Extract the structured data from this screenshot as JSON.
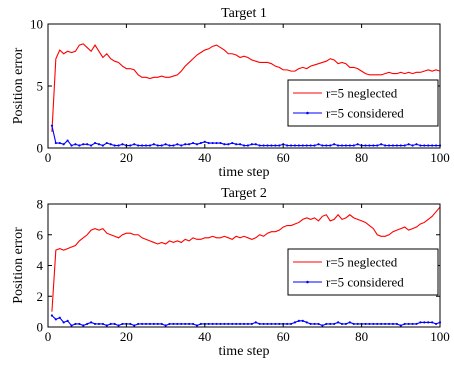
{
  "chart_data": [
    {
      "type": "line",
      "title": "Target 1",
      "xlabel": "time step",
      "ylabel": "Position error",
      "xlim": [
        0,
        100
      ],
      "ylim": [
        0,
        10
      ],
      "xticks": [
        0,
        20,
        40,
        60,
        80,
        100
      ],
      "yticks": [
        0,
        5,
        10
      ],
      "grid": false,
      "legend_position": "center-right",
      "series": [
        {
          "name": "r=5 neglected",
          "color": "#ff0000",
          "marker": "none",
          "x": [
            1,
            2,
            3,
            4,
            5,
            6,
            7,
            8,
            9,
            10,
            11,
            12,
            13,
            14,
            15,
            16,
            17,
            18,
            19,
            20,
            21,
            22,
            23,
            24,
            25,
            26,
            27,
            28,
            29,
            30,
            31,
            32,
            33,
            34,
            35,
            36,
            37,
            38,
            39,
            40,
            41,
            42,
            43,
            44,
            45,
            46,
            47,
            48,
            49,
            50,
            51,
            52,
            53,
            54,
            55,
            56,
            57,
            58,
            59,
            60,
            61,
            62,
            63,
            64,
            65,
            66,
            67,
            68,
            69,
            70,
            71,
            72,
            73,
            74,
            75,
            76,
            77,
            78,
            79,
            80,
            81,
            82,
            83,
            84,
            85,
            86,
            87,
            88,
            89,
            90,
            91,
            92,
            93,
            94,
            95,
            96,
            97,
            98,
            99,
            100
          ],
          "y": [
            1.3,
            7.2,
            7.9,
            7.6,
            7.8,
            7.7,
            7.8,
            8.3,
            8.4,
            8.1,
            7.8,
            8.3,
            7.8,
            7.3,
            7.6,
            7.2,
            7.0,
            6.9,
            6.6,
            6.4,
            6.4,
            6.3,
            5.9,
            5.7,
            5.7,
            5.6,
            5.7,
            5.7,
            5.8,
            5.7,
            5.7,
            5.8,
            5.9,
            6.2,
            6.6,
            6.9,
            7.2,
            7.5,
            7.7,
            7.9,
            8.0,
            8.2,
            8.3,
            8.1,
            7.9,
            7.6,
            7.6,
            7.5,
            7.3,
            7.4,
            7.3,
            7.1,
            7.0,
            6.9,
            6.9,
            6.9,
            6.8,
            6.6,
            6.5,
            6.3,
            6.3,
            6.2,
            6.2,
            6.4,
            6.5,
            6.4,
            6.6,
            6.7,
            6.8,
            6.9,
            7.0,
            7.2,
            7.1,
            6.8,
            6.9,
            6.8,
            6.5,
            6.5,
            6.4,
            6.2,
            6.0,
            5.9,
            5.9,
            5.9,
            5.9,
            6.0,
            6.1,
            6.0,
            6.0,
            6.1,
            6.0,
            6.1,
            6.0,
            6.1,
            6.1,
            6.2,
            6.3,
            6.2,
            6.3,
            6.2
          ]
        },
        {
          "name": "r=5 considered",
          "color": "#0000ff",
          "marker": "dot",
          "x": [
            1,
            2,
            3,
            4,
            5,
            6,
            7,
            8,
            9,
            10,
            11,
            12,
            13,
            14,
            15,
            16,
            17,
            18,
            19,
            20,
            21,
            22,
            23,
            24,
            25,
            26,
            27,
            28,
            29,
            30,
            31,
            32,
            33,
            34,
            35,
            36,
            37,
            38,
            39,
            40,
            41,
            42,
            43,
            44,
            45,
            46,
            47,
            48,
            49,
            50,
            51,
            52,
            53,
            54,
            55,
            56,
            57,
            58,
            59,
            60,
            61,
            62,
            63,
            64,
            65,
            66,
            67,
            68,
            69,
            70,
            71,
            72,
            73,
            74,
            75,
            76,
            77,
            78,
            79,
            80,
            81,
            82,
            83,
            84,
            85,
            86,
            87,
            88,
            89,
            90,
            91,
            92,
            93,
            94,
            95,
            96,
            97,
            98,
            99,
            100
          ],
          "y": [
            1.8,
            0.4,
            0.4,
            0.3,
            0.6,
            0.2,
            0.3,
            0.2,
            0.3,
            0.3,
            0.2,
            0.4,
            0.3,
            0.2,
            0.4,
            0.3,
            0.2,
            0.2,
            0.3,
            0.2,
            0.2,
            0.3,
            0.2,
            0.2,
            0.2,
            0.2,
            0.3,
            0.2,
            0.2,
            0.3,
            0.2,
            0.2,
            0.3,
            0.2,
            0.3,
            0.3,
            0.4,
            0.3,
            0.4,
            0.5,
            0.4,
            0.4,
            0.4,
            0.4,
            0.3,
            0.3,
            0.4,
            0.3,
            0.3,
            0.2,
            0.2,
            0.3,
            0.3,
            0.2,
            0.2,
            0.2,
            0.2,
            0.2,
            0.2,
            0.3,
            0.2,
            0.2,
            0.2,
            0.2,
            0.2,
            0.2,
            0.2,
            0.2,
            0.3,
            0.2,
            0.2,
            0.2,
            0.3,
            0.2,
            0.2,
            0.2,
            0.2,
            0.2,
            0.3,
            0.2,
            0.2,
            0.2,
            0.2,
            0.2,
            0.3,
            0.2,
            0.2,
            0.2,
            0.2,
            0.2,
            0.2,
            0.3,
            0.2,
            0.3,
            0.2,
            0.2,
            0.2,
            0.2,
            0.2,
            0.2
          ]
        }
      ]
    },
    {
      "type": "line",
      "title": "Target 2",
      "xlabel": "time step",
      "ylabel": "Position error",
      "xlim": [
        0,
        100
      ],
      "ylim": [
        0,
        8
      ],
      "xticks": [
        0,
        20,
        40,
        60,
        80,
        100
      ],
      "yticks": [
        0,
        2,
        4,
        6,
        8
      ],
      "grid": false,
      "legend_position": "center-right",
      "series": [
        {
          "name": "r=5 neglected",
          "color": "#ff0000",
          "marker": "none",
          "x": [
            1,
            2,
            3,
            4,
            5,
            6,
            7,
            8,
            9,
            10,
            11,
            12,
            13,
            14,
            15,
            16,
            17,
            18,
            19,
            20,
            21,
            22,
            23,
            24,
            25,
            26,
            27,
            28,
            29,
            30,
            31,
            32,
            33,
            34,
            35,
            36,
            37,
            38,
            39,
            40,
            41,
            42,
            43,
            44,
            45,
            46,
            47,
            48,
            49,
            50,
            51,
            52,
            53,
            54,
            55,
            56,
            57,
            58,
            59,
            60,
            61,
            62,
            63,
            64,
            65,
            66,
            67,
            68,
            69,
            70,
            71,
            72,
            73,
            74,
            75,
            76,
            77,
            78,
            79,
            80,
            81,
            82,
            83,
            84,
            85,
            86,
            87,
            88,
            89,
            90,
            91,
            92,
            93,
            94,
            95,
            96,
            97,
            98,
            99,
            100
          ],
          "y": [
            1.0,
            5.0,
            5.1,
            5.0,
            5.1,
            5.2,
            5.3,
            5.6,
            5.8,
            6.0,
            6.3,
            6.4,
            6.3,
            6.4,
            6.1,
            6.0,
            5.9,
            5.8,
            6.0,
            6.1,
            6.1,
            6.0,
            6.0,
            5.8,
            5.7,
            5.6,
            5.5,
            5.4,
            5.5,
            5.4,
            5.6,
            5.5,
            5.6,
            5.5,
            5.7,
            5.6,
            5.8,
            5.7,
            5.7,
            5.8,
            5.8,
            5.9,
            5.8,
            5.8,
            5.9,
            5.8,
            5.7,
            5.9,
            5.8,
            5.9,
            5.8,
            5.7,
            5.8,
            6.0,
            5.9,
            6.1,
            6.2,
            6.2,
            6.3,
            6.5,
            6.6,
            6.6,
            6.7,
            6.8,
            7.0,
            7.1,
            7.0,
            7.1,
            6.9,
            7.2,
            7.3,
            6.9,
            7.0,
            7.3,
            7.0,
            7.1,
            7.3,
            7.1,
            7.0,
            6.9,
            6.8,
            6.6,
            6.4,
            6.0,
            5.9,
            5.9,
            6.0,
            6.2,
            6.3,
            6.4,
            6.5,
            6.3,
            6.4,
            6.5,
            6.7,
            6.8,
            7.0,
            7.2,
            7.5,
            7.8
          ]
        },
        {
          "name": "r=5 considered",
          "color": "#0000ff",
          "marker": "dot",
          "x": [
            1,
            2,
            3,
            4,
            5,
            6,
            7,
            8,
            9,
            10,
            11,
            12,
            13,
            14,
            15,
            16,
            17,
            18,
            19,
            20,
            21,
            22,
            23,
            24,
            25,
            26,
            27,
            28,
            29,
            30,
            31,
            32,
            33,
            34,
            35,
            36,
            37,
            38,
            39,
            40,
            41,
            42,
            43,
            44,
            45,
            46,
            47,
            48,
            49,
            50,
            51,
            52,
            53,
            54,
            55,
            56,
            57,
            58,
            59,
            60,
            61,
            62,
            63,
            64,
            65,
            66,
            67,
            68,
            69,
            70,
            71,
            72,
            73,
            74,
            75,
            76,
            77,
            78,
            79,
            80,
            81,
            82,
            83,
            84,
            85,
            86,
            87,
            88,
            89,
            90,
            91,
            92,
            93,
            94,
            95,
            96,
            97,
            98,
            99,
            100
          ],
          "y": [
            0.75,
            0.5,
            0.6,
            0.3,
            0.4,
            0.1,
            0.2,
            0.2,
            0.1,
            0.2,
            0.3,
            0.2,
            0.2,
            0.2,
            0.1,
            0.2,
            0.2,
            0.1,
            0.2,
            0.2,
            0.2,
            0.1,
            0.2,
            0.2,
            0.2,
            0.2,
            0.2,
            0.2,
            0.2,
            0.1,
            0.2,
            0.2,
            0.2,
            0.2,
            0.2,
            0.2,
            0.2,
            0.1,
            0.2,
            0.2,
            0.2,
            0.2,
            0.2,
            0.2,
            0.2,
            0.2,
            0.2,
            0.2,
            0.2,
            0.2,
            0.2,
            0.2,
            0.3,
            0.2,
            0.2,
            0.2,
            0.2,
            0.2,
            0.2,
            0.2,
            0.2,
            0.2,
            0.3,
            0.4,
            0.4,
            0.3,
            0.2,
            0.2,
            0.2,
            0.1,
            0.2,
            0.2,
            0.2,
            0.3,
            0.2,
            0.2,
            0.3,
            0.2,
            0.2,
            0.2,
            0.2,
            0.2,
            0.2,
            0.2,
            0.2,
            0.2,
            0.2,
            0.2,
            0.2,
            0.1,
            0.2,
            0.2,
            0.2,
            0.2,
            0.3,
            0.3,
            0.3,
            0.3,
            0.2,
            0.3
          ]
        }
      ]
    }
  ]
}
